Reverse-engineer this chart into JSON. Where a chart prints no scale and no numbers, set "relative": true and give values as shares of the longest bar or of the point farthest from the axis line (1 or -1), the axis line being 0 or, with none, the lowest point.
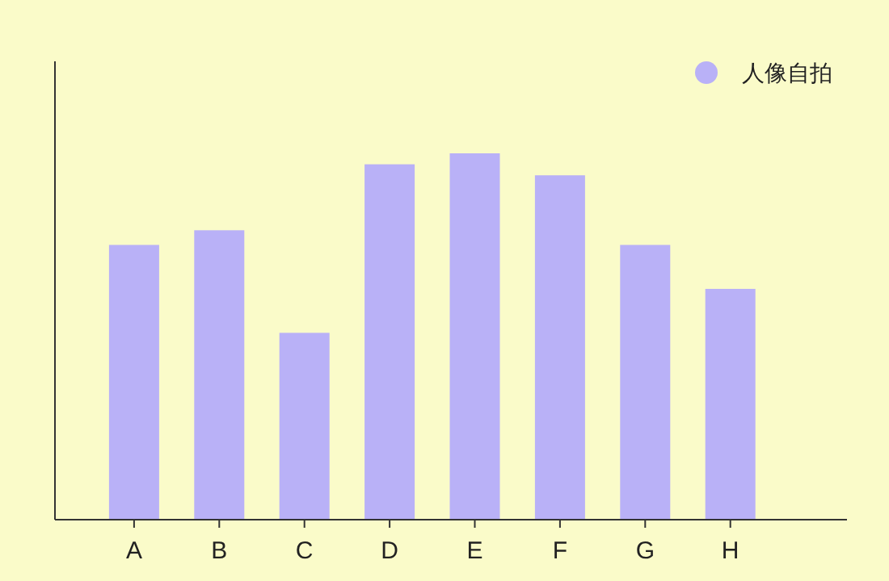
{
  "chart_data": {
    "type": "bar",
    "categories": [
      "A",
      "B",
      "C",
      "D",
      "E",
      "F",
      "G",
      "H"
    ],
    "series": [
      {
        "name": "人像自拍",
        "color": "#b9b1f7",
        "values": [
          0.75,
          0.79,
          0.51,
          0.97,
          1,
          0.94,
          0.75,
          0.63
        ]
      }
    ],
    "relative": true,
    "legend": "top right"
  }
}
